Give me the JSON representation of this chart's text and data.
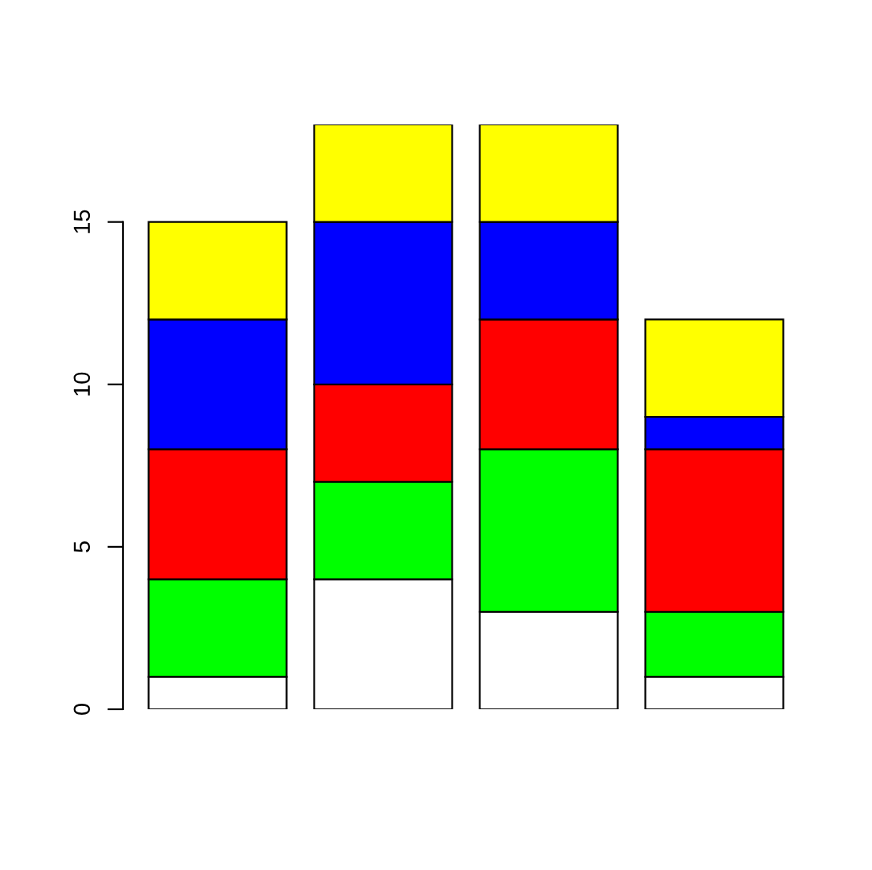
{
  "chart_data": {
    "type": "bar",
    "stacked": true,
    "categories": [
      null,
      null,
      null,
      null
    ],
    "series": [
      {
        "color": "#ffffff",
        "values": [
          1,
          4,
          3,
          1
        ]
      },
      {
        "color": "#00ff00",
        "values": [
          3,
          3,
          5,
          2
        ]
      },
      {
        "color": "#ff0000",
        "values": [
          4,
          3,
          4,
          5
        ]
      },
      {
        "color": "#0000ff",
        "values": [
          4,
          5,
          3,
          1
        ]
      },
      {
        "color": "#ffff00",
        "values": [
          3,
          3,
          3,
          3
        ]
      }
    ],
    "ylim": [
      0,
      18
    ],
    "yticks": [
      0,
      5,
      10,
      15
    ],
    "tick_labels": "y"
  }
}
